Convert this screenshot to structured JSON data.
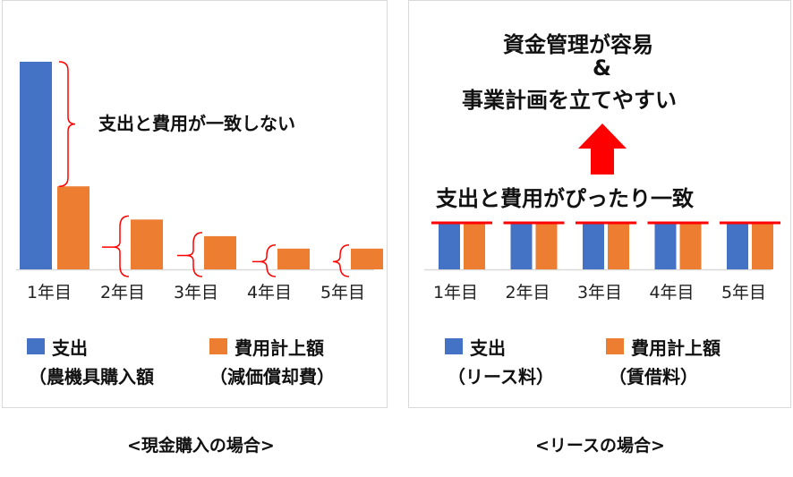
{
  "chart_data": [
    {
      "type": "bar",
      "caption": "<現金購入の場合>",
      "categories": [
        "1年目",
        "2年目",
        "3年目",
        "4年目",
        "5年目"
      ],
      "series": [
        {
          "name": "支出",
          "name_sub": "（農機具購入額",
          "color": "#4472c4",
          "values": [
            100,
            0,
            0,
            0,
            0
          ]
        },
        {
          "name": "費用計上額",
          "name_sub": "（減価償却費）",
          "color": "#ed7d31",
          "values": [
            40,
            24,
            16,
            10,
            10
          ]
        }
      ],
      "ylim": [
        0,
        100
      ],
      "annotation": "支出と費用が一致しない",
      "annotation_color": "#ff0000",
      "legend": "bottom",
      "grid": false
    },
    {
      "type": "bar",
      "caption": "<リースの場合>",
      "categories": [
        "1年目",
        "2年目",
        "3年目",
        "4年目",
        "5年目"
      ],
      "series": [
        {
          "name": "支出",
          "name_sub": "（リース料）",
          "color": "#4472c4",
          "values": [
            22,
            22,
            22,
            22,
            22
          ]
        },
        {
          "name": "費用計上額",
          "name_sub": "（賃借料）",
          "color": "#ed7d31",
          "values": [
            22,
            22,
            22,
            22,
            22
          ]
        }
      ],
      "ylim": [
        0,
        100
      ],
      "annotation": "支出と費用がぴったり一致",
      "headline": [
        "資金管理が容易",
        "&",
        "事業計画を立てやすい"
      ],
      "annotation_color": "#ff0000",
      "legend": "bottom",
      "grid": false
    }
  ]
}
